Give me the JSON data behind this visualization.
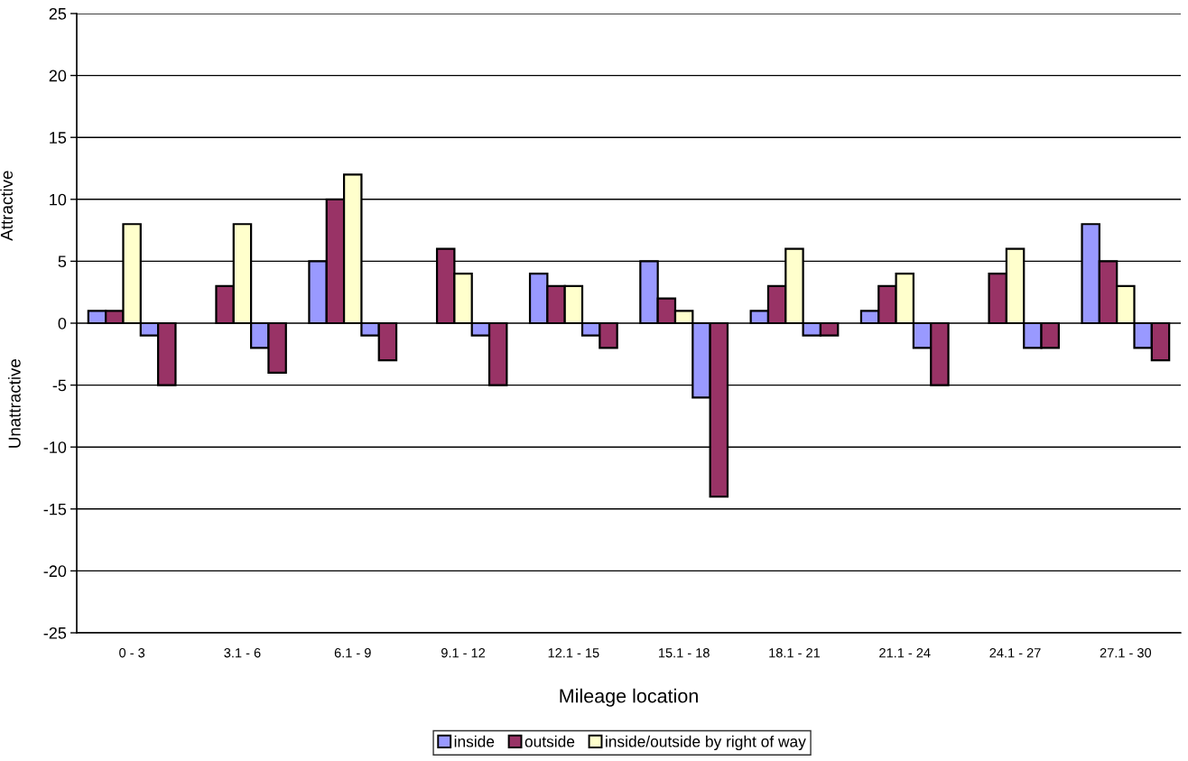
{
  "chart_data": {
    "type": "bar",
    "xlabel": "Mileage location",
    "ylabel": "Attractive",
    "annotations": [
      "Unattractive"
    ],
    "categories": [
      "0 - 3",
      "3.1 - 6",
      "6.1 - 9",
      "9.1 - 12",
      "12.1 - 15",
      "15.1 - 18",
      "18.1 - 21",
      "21.1 - 24",
      "24.1 - 27",
      "27.1 - 30"
    ],
    "series": [
      {
        "name": "inside",
        "color": "#9999ff",
        "values": [
          1,
          null,
          5,
          null,
          4,
          5,
          1,
          1,
          null,
          8
        ]
      },
      {
        "name": "outside",
        "color": "#993366",
        "values": [
          1,
          3,
          10,
          6,
          3,
          2,
          3,
          3,
          4,
          5
        ]
      },
      {
        "name": "inside/outside by right of way",
        "color": "#ffffcc",
        "values": [
          8,
          8,
          12,
          4,
          3,
          1,
          6,
          4,
          6,
          3
        ]
      },
      {
        "color": "#9999ff",
        "values": [
          -1,
          -2,
          -1,
          -1,
          -1,
          -6,
          -1,
          -2,
          -2,
          -2
        ]
      },
      {
        "color": "#993366",
        "values": [
          -5,
          -4,
          -3,
          -5,
          -2,
          -14,
          -1,
          -5,
          -2,
          -3
        ]
      }
    ],
    "ylim": [
      -25,
      25
    ],
    "yticks": [
      -25,
      -20,
      -15,
      -10,
      -5,
      0,
      5,
      10,
      15,
      20,
      25
    ],
    "grid": "y",
    "legend": "bottom"
  }
}
